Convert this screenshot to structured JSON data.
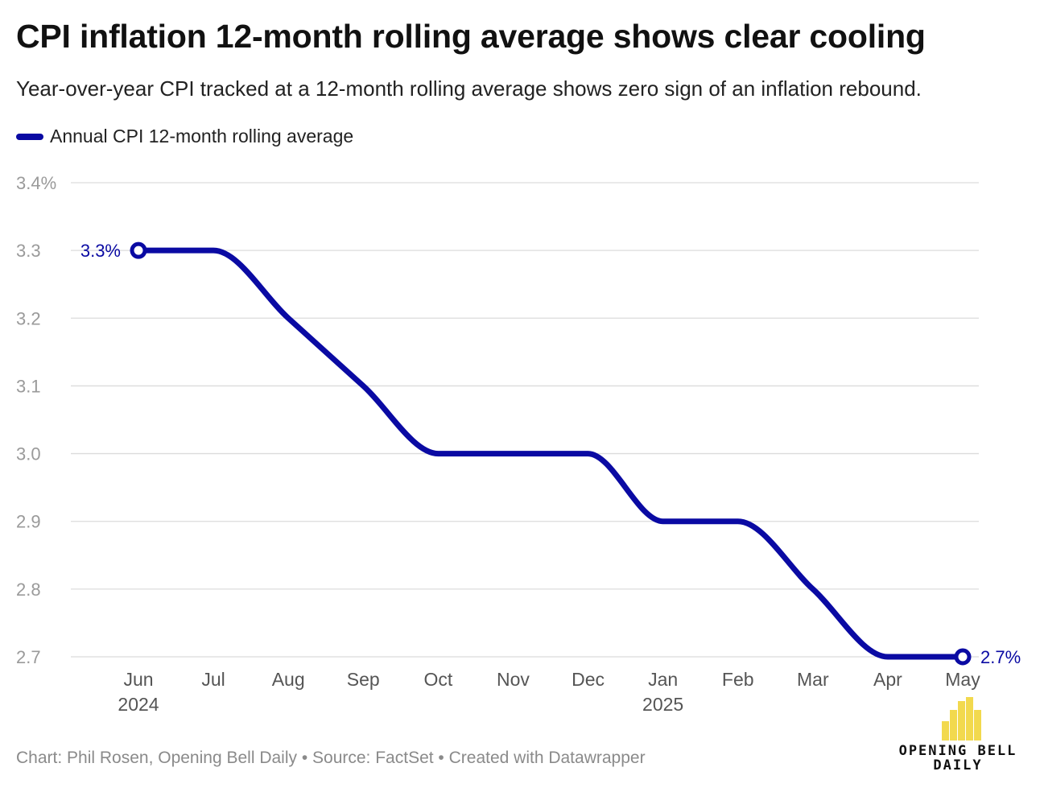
{
  "header": {
    "title": "CPI inflation 12-month rolling average shows clear cooling",
    "subtitle": "Year-over-year CPI tracked at a 12-month rolling average shows zero sign of an inflation rebound."
  },
  "legend": {
    "label": "Annual CPI 12-month rolling average",
    "color": "#0a0aa3"
  },
  "chart_data": {
    "type": "line",
    "title": "CPI inflation 12-month rolling average shows clear cooling",
    "subtitle": "Year-over-year CPI tracked at a 12-month rolling average shows zero sign of an inflation rebound.",
    "xlabel": "",
    "ylabel": "",
    "x": [
      "Jun 2024",
      "Jul 2024",
      "Aug 2024",
      "Sep 2024",
      "Oct 2024",
      "Nov 2024",
      "Dec 2024",
      "Jan 2025",
      "Feb 2025",
      "Mar 2025",
      "Apr 2025",
      "May 2025"
    ],
    "x_tick_labels": [
      {
        "month": "Jun",
        "year": "2024"
      },
      {
        "month": "Jul",
        "year": ""
      },
      {
        "month": "Aug",
        "year": ""
      },
      {
        "month": "Sep",
        "year": ""
      },
      {
        "month": "Oct",
        "year": ""
      },
      {
        "month": "Nov",
        "year": ""
      },
      {
        "month": "Dec",
        "year": ""
      },
      {
        "month": "Jan",
        "year": "2025"
      },
      {
        "month": "Feb",
        "year": ""
      },
      {
        "month": "Mar",
        "year": ""
      },
      {
        "month": "Apr",
        "year": ""
      },
      {
        "month": "May",
        "year": ""
      }
    ],
    "series": [
      {
        "name": "Annual CPI 12-month rolling average",
        "color": "#0a0aa3",
        "values": [
          3.3,
          3.3,
          3.2,
          3.1,
          3.0,
          3.0,
          3.0,
          2.9,
          2.9,
          2.8,
          2.7,
          2.7
        ]
      }
    ],
    "ylim": [
      2.7,
      3.4
    ],
    "y_ticks": [
      2.7,
      2.8,
      2.9,
      3.0,
      3.1,
      3.2,
      3.3,
      3.4
    ],
    "y_tick_labels": [
      "2.7",
      "2.8",
      "2.9",
      "3.0",
      "3.1",
      "3.2",
      "3.3",
      "3.4%"
    ],
    "annotations": [
      {
        "index": 0,
        "text": "3.3%",
        "side": "left"
      },
      {
        "index": 11,
        "text": "2.7%",
        "side": "right"
      }
    ],
    "grid": true,
    "legend_position": "top-left"
  },
  "footer": {
    "credit": "Chart: Phil Rosen, Opening Bell Daily • Source: FactSet • Created with Datawrapper"
  },
  "logo": {
    "line1": "OPENING BELL",
    "line2": "DAILY",
    "bar_color": "#f2d94e",
    "bar_heights": [
      0.45,
      0.7,
      0.9,
      1.0,
      0.7
    ]
  },
  "colors": {
    "grid": "#dcdcdc",
    "axis_text": "#9a9a9a",
    "tick_text": "#555555"
  }
}
